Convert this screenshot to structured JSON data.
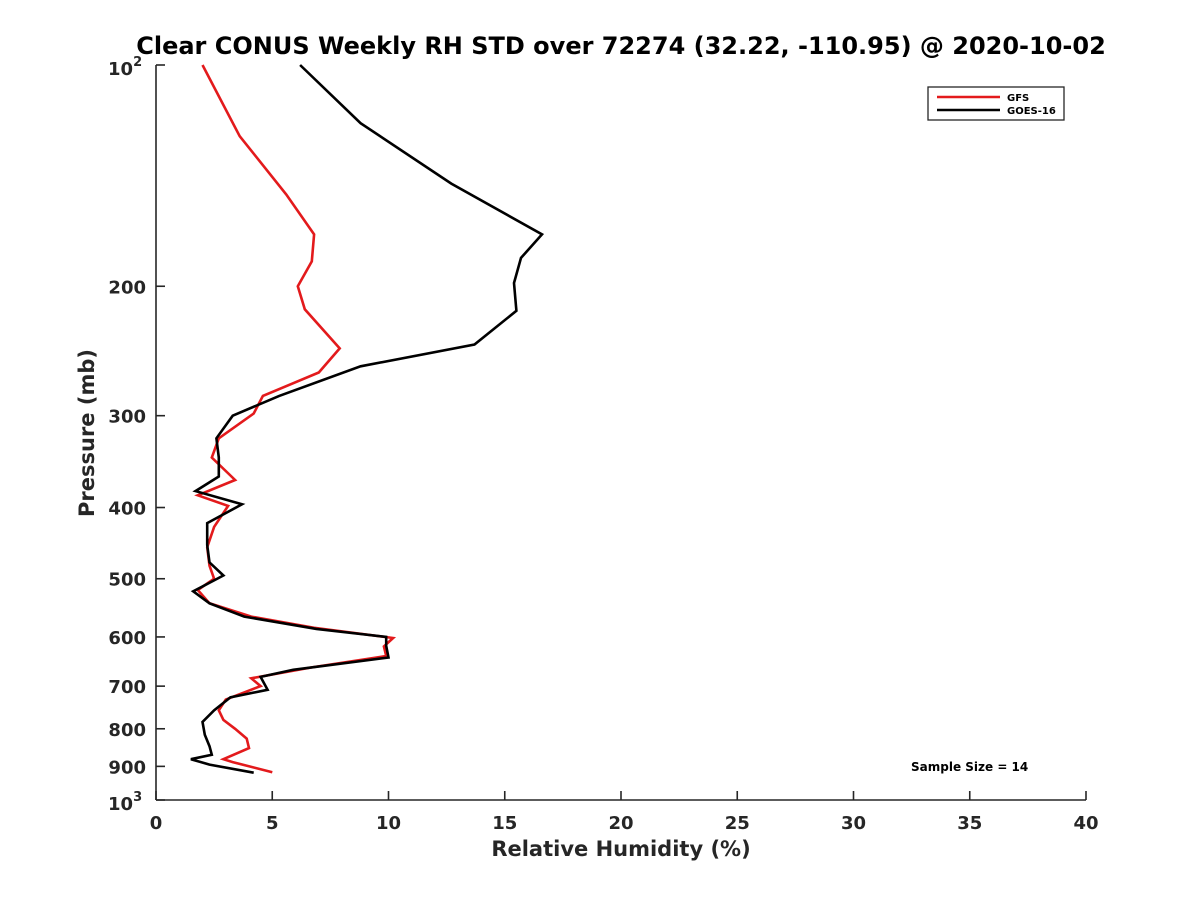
{
  "chart_data": {
    "type": "line",
    "title": "Clear CONUS Weekly RH STD over 72274 (32.22, -110.95) @ 2020-10-02",
    "xlabel": "Relative Humidity (%)",
    "ylabel": "Pressure (mb)",
    "xlim": [
      0,
      40
    ],
    "ylim": [
      100,
      1000
    ],
    "y_scale": "log",
    "y_reversed": true,
    "grid": false,
    "legend_position": "top-right",
    "x_ticks": [
      "0",
      "5",
      "10",
      "15",
      "20",
      "25",
      "30",
      "35",
      "40"
    ],
    "y_ticks": [
      {
        "value": 100,
        "base": "10",
        "exp": "2"
      },
      {
        "value": 200,
        "label": "200"
      },
      {
        "value": 300,
        "label": "300"
      },
      {
        "value": 400,
        "label": "400"
      },
      {
        "value": 500,
        "label": "500"
      },
      {
        "value": 600,
        "label": "600"
      },
      {
        "value": 700,
        "label": "700"
      },
      {
        "value": 800,
        "label": "800"
      },
      {
        "value": 900,
        "label": "900"
      },
      {
        "value": 1000,
        "base": "10",
        "exp": "3"
      }
    ],
    "annotation": "Sample Size = 14",
    "series": [
      {
        "name": "GFS",
        "color": "#e31a1c",
        "points": [
          [
            2.0,
            100
          ],
          [
            3.6,
            125
          ],
          [
            5.6,
            150
          ],
          [
            6.8,
            170
          ],
          [
            6.7,
            185
          ],
          [
            6.1,
            200
          ],
          [
            6.4,
            215
          ],
          [
            7.9,
            243
          ],
          [
            7.0,
            262
          ],
          [
            4.6,
            282
          ],
          [
            4.2,
            298
          ],
          [
            2.7,
            322
          ],
          [
            2.4,
            342
          ],
          [
            3.4,
            367
          ],
          [
            1.8,
            385
          ],
          [
            3.1,
            398
          ],
          [
            2.5,
            425
          ],
          [
            2.2,
            453
          ],
          [
            2.3,
            480
          ],
          [
            2.5,
            500
          ],
          [
            1.8,
            518
          ],
          [
            2.3,
            540
          ],
          [
            4.1,
            563
          ],
          [
            6.8,
            583
          ],
          [
            10.2,
            602
          ],
          [
            9.8,
            618
          ],
          [
            9.9,
            637
          ],
          [
            6.7,
            660
          ],
          [
            4.1,
            683
          ],
          [
            4.5,
            700
          ],
          [
            3.0,
            730
          ],
          [
            2.7,
            755
          ],
          [
            2.9,
            778
          ],
          [
            3.4,
            800
          ],
          [
            3.9,
            825
          ],
          [
            4.0,
            850
          ],
          [
            2.9,
            880
          ],
          [
            3.3,
            888
          ],
          [
            5.0,
            917
          ]
        ]
      },
      {
        "name": "GOES-16",
        "color": "#000000",
        "points": [
          [
            6.2,
            100
          ],
          [
            8.8,
            120
          ],
          [
            12.7,
            145
          ],
          [
            16.6,
            170
          ],
          [
            15.7,
            183
          ],
          [
            15.4,
            198
          ],
          [
            15.5,
            216
          ],
          [
            13.7,
            240
          ],
          [
            8.8,
            257
          ],
          [
            5.3,
            282
          ],
          [
            3.3,
            300
          ],
          [
            2.6,
            322
          ],
          [
            2.7,
            342
          ],
          [
            2.7,
            363
          ],
          [
            1.7,
            380
          ],
          [
            3.7,
            396
          ],
          [
            2.2,
            420
          ],
          [
            2.2,
            450
          ],
          [
            2.3,
            475
          ],
          [
            2.9,
            495
          ],
          [
            1.6,
            520
          ],
          [
            2.3,
            540
          ],
          [
            3.8,
            563
          ],
          [
            6.9,
            585
          ],
          [
            9.9,
            600
          ],
          [
            9.9,
            617
          ],
          [
            10.0,
            640
          ],
          [
            5.9,
            665
          ],
          [
            4.5,
            680
          ],
          [
            4.8,
            708
          ],
          [
            3.2,
            725
          ],
          [
            2.5,
            755
          ],
          [
            2.0,
            783
          ],
          [
            2.1,
            815
          ],
          [
            2.3,
            845
          ],
          [
            2.4,
            868
          ],
          [
            1.5,
            880
          ],
          [
            2.3,
            895
          ],
          [
            4.2,
            918
          ]
        ]
      }
    ]
  }
}
